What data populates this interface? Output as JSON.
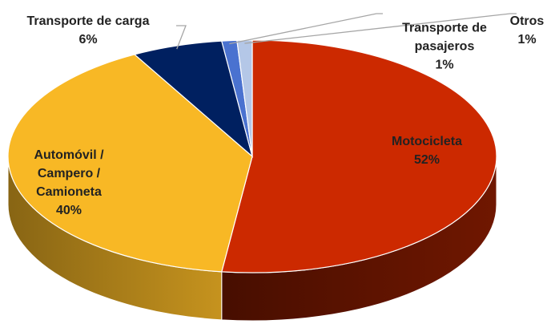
{
  "chart_data": {
    "type": "pie",
    "categories": [
      "Motocicleta",
      "Automóvil / Campero / Camioneta",
      "Transporte de carga",
      "Transporte de pasajeros",
      "Otros"
    ],
    "values": [
      52,
      40,
      6,
      1,
      1
    ],
    "value_labels": [
      "52%",
      "40%",
      "6%",
      "1%",
      "1%"
    ],
    "colors": [
      "#cc2900",
      "#f8b825",
      "#002060",
      "#4a72d0",
      "#b4c7e7"
    ]
  }
}
